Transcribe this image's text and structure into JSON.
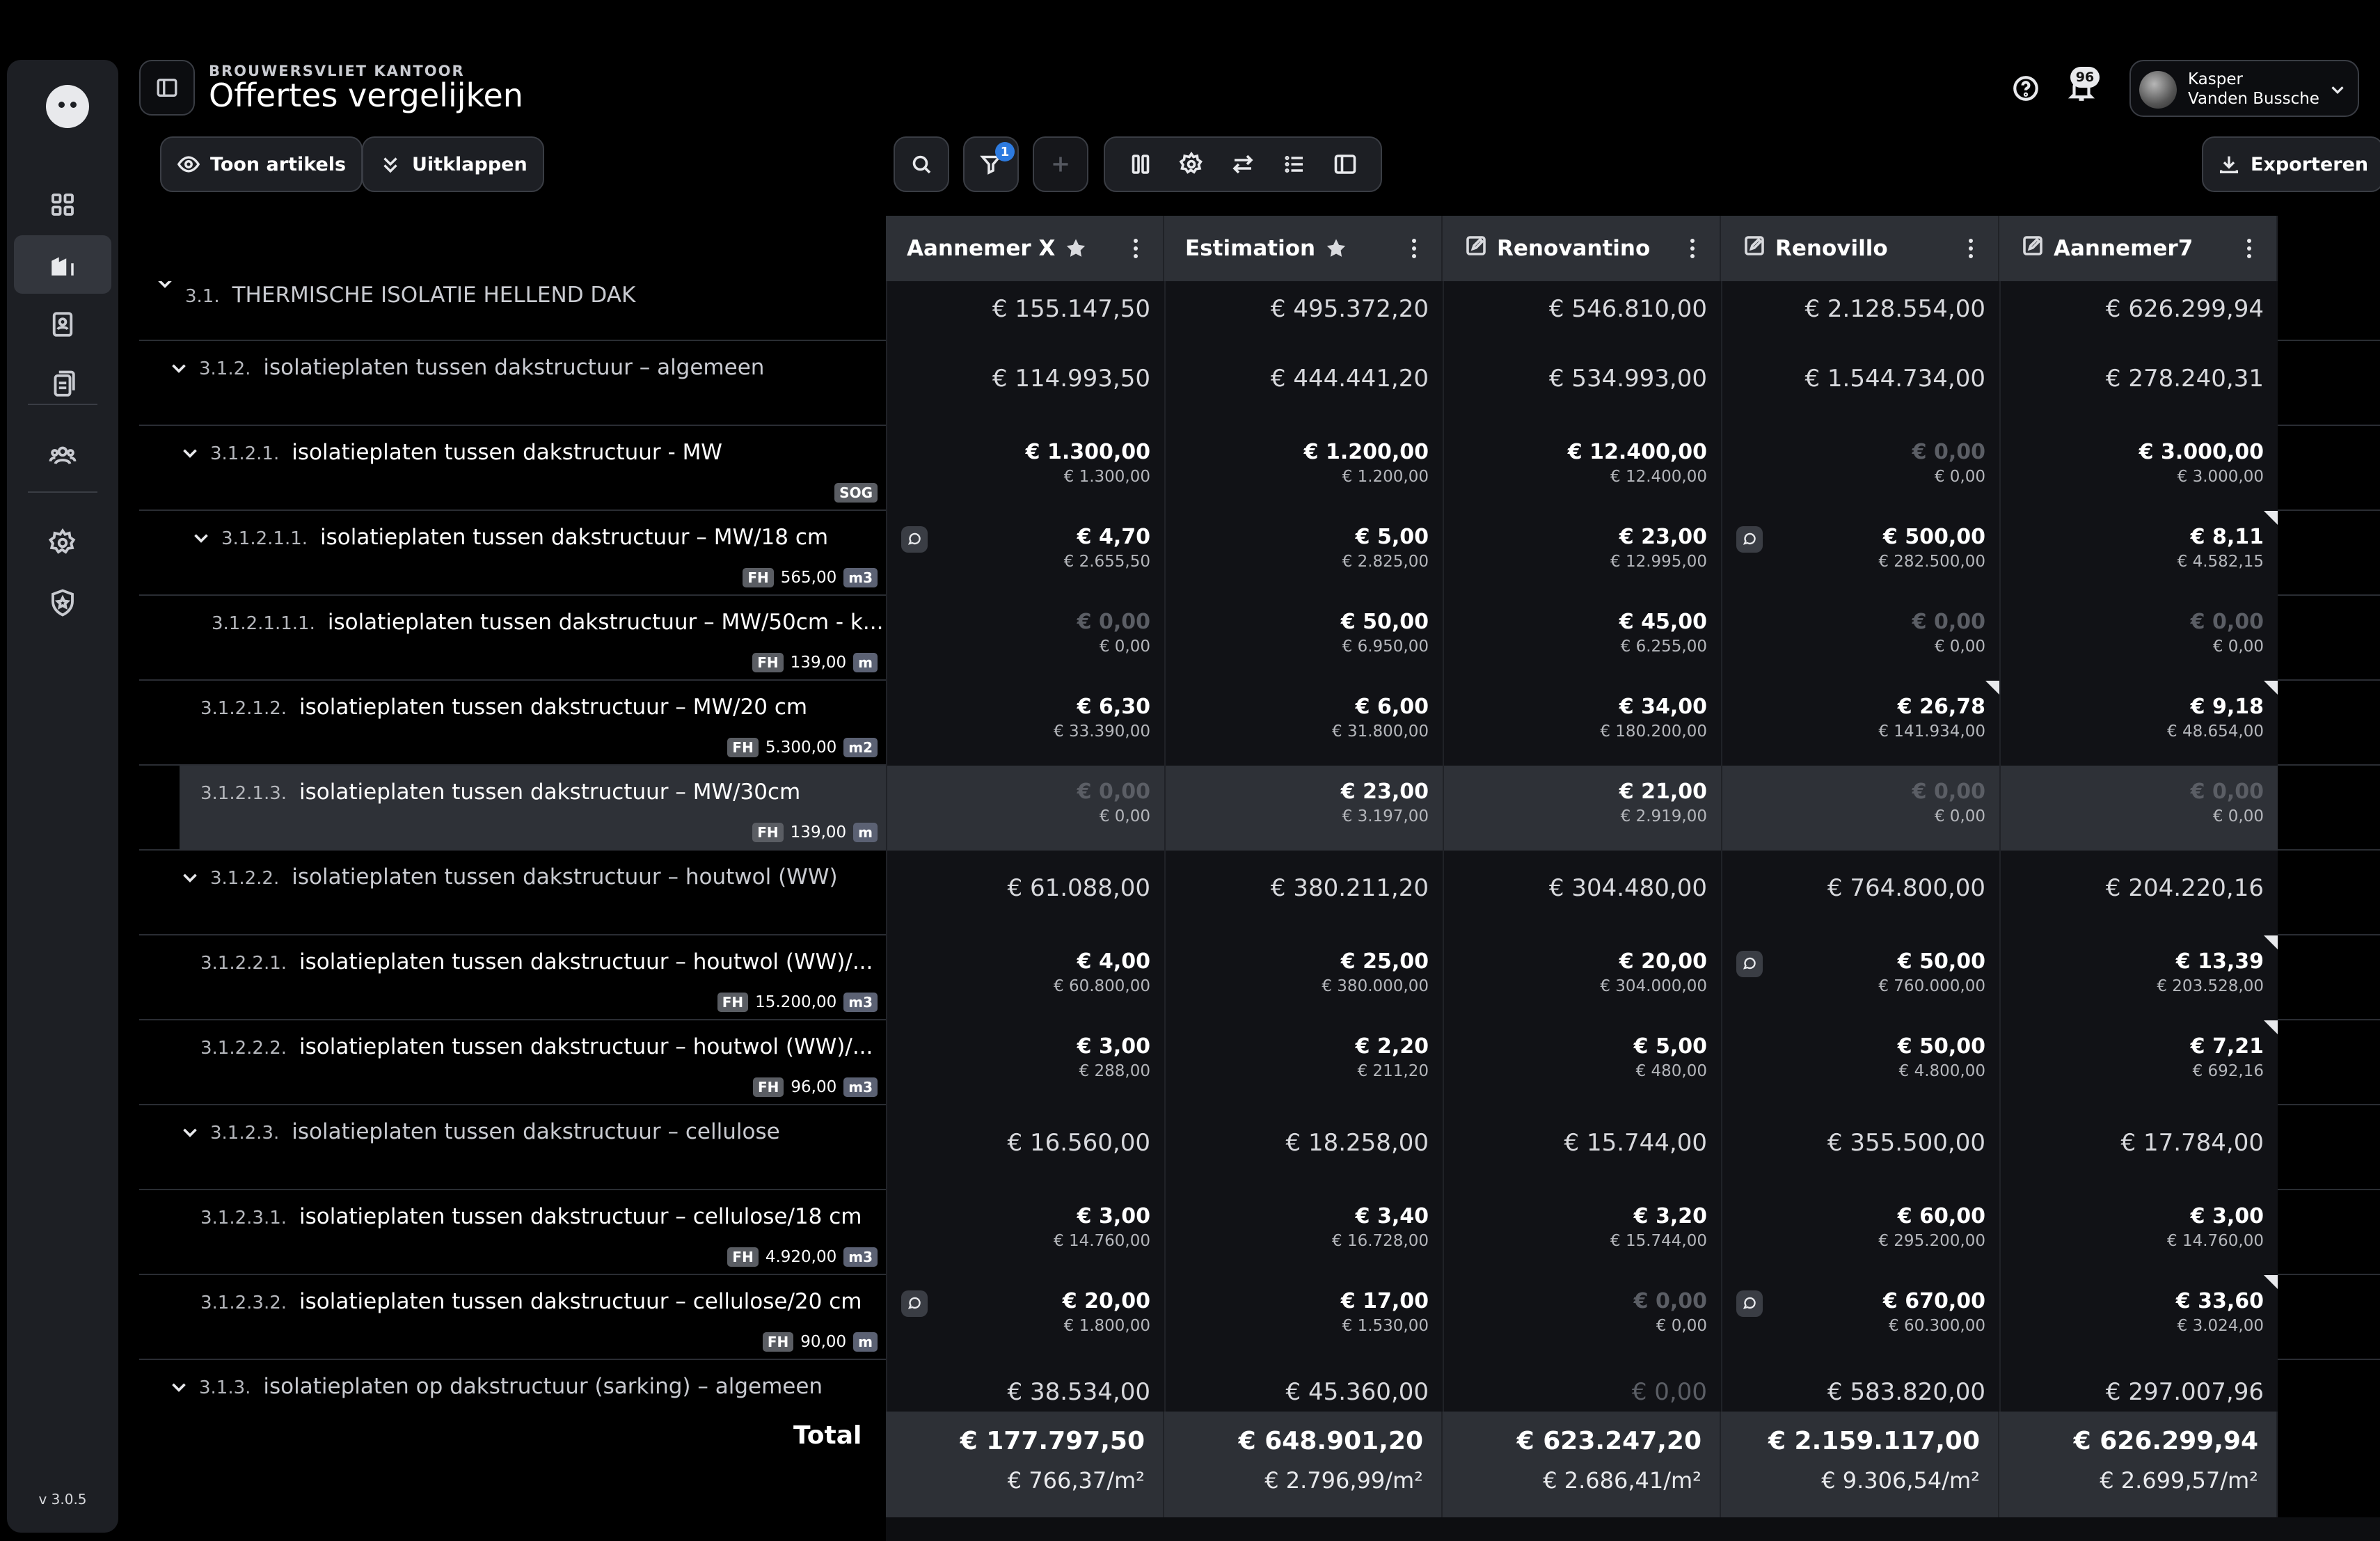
{
  "app": {
    "version": "v 3.0.5",
    "kicker": "BROUWERSVLIET KANTOOR",
    "title": "Offertes vergelijken"
  },
  "header": {
    "notifications": "96",
    "user": {
      "line1": "Kasper",
      "line2": "Vanden Bussche"
    }
  },
  "toolbar": {
    "show_articles": "Toon artikels",
    "expand": "Uitklappen",
    "filter_count": "1",
    "export": "Exporteren"
  },
  "columns": [
    {
      "name": "Aannemer X",
      "icon": "star"
    },
    {
      "name": "Estimation",
      "icon": "star"
    },
    {
      "name": "Renovantino",
      "icon": "edit"
    },
    {
      "name": "Renovillo",
      "icon": "edit"
    },
    {
      "name": "Aannemer7",
      "icon": "edit"
    }
  ],
  "rows": [
    {
      "type": "group",
      "num": "3.1.",
      "label": "THERMISCHE ISOLATIE HELLEND DAK",
      "cells": [
        "€ 155.147,50",
        "€ 495.372,20",
        "€ 546.810,00",
        "€ 2.128.554,00",
        "€ 626.299,94"
      ]
    },
    {
      "type": "group",
      "num": "3.1.2.",
      "label": "isolatieplaten tussen dakstructuur – algemeen",
      "cells": [
        "€ 114.993,50",
        "€ 444.441,20",
        "€ 534.993,00",
        "€ 1.544.734,00",
        "€ 278.240,31"
      ]
    },
    {
      "type": "item",
      "num": "3.1.2.1.",
      "label": "isolatieplaten tussen dakstructuur - MW",
      "tag": "SOG",
      "qty": "",
      "unit": "",
      "cells": [
        [
          "€ 1.300,00",
          "€ 1.300,00"
        ],
        [
          "€ 1.200,00",
          "€ 1.200,00"
        ],
        [
          "€ 12.400,00",
          "€ 12.400,00"
        ],
        [
          "€ 0,00",
          "€ 0,00"
        ],
        [
          "€ 3.000,00",
          "€ 3.000,00"
        ]
      ]
    },
    {
      "type": "item",
      "num": "3.1.2.1.1.",
      "label": "isolatieplaten tussen dakstructuur – MW/18 cm",
      "tag": "FH",
      "qty": "565,00",
      "unit": "m3",
      "cells": [
        [
          "€ 4,70",
          "€ 2.655,50"
        ],
        [
          "€ 5,00",
          "€ 2.825,00"
        ],
        [
          "€ 23,00",
          "€ 12.995,00"
        ],
        [
          "€ 500,00",
          "€ 282.500,00"
        ],
        [
          "€ 8,11",
          "€ 4.582,15"
        ]
      ]
    },
    {
      "type": "item",
      "num": "3.1.2.1.1.1.",
      "label": "isolatieplaten tussen dakstructuur – MW/50cm - k...",
      "tag": "FH",
      "qty": "139,00",
      "unit": "m",
      "cells": [
        [
          "€ 0,00",
          "€ 0,00"
        ],
        [
          "€ 50,00",
          "€ 6.950,00"
        ],
        [
          "€ 45,00",
          "€ 6.255,00"
        ],
        [
          "€ 0,00",
          "€ 0,00"
        ],
        [
          "€ 0,00",
          "€ 0,00"
        ]
      ]
    },
    {
      "type": "item",
      "num": "3.1.2.1.2.",
      "label": "isolatieplaten tussen dakstructuur – MW/20 cm",
      "tag": "FH",
      "qty": "5.300,00",
      "unit": "m2",
      "cells": [
        [
          "€ 6,30",
          "€ 33.390,00"
        ],
        [
          "€ 6,00",
          "€ 31.800,00"
        ],
        [
          "€ 34,00",
          "€ 180.200,00"
        ],
        [
          "€ 26,78",
          "€ 141.934,00"
        ],
        [
          "€ 9,18",
          "€ 48.654,00"
        ]
      ]
    },
    {
      "type": "item",
      "num": "3.1.2.1.3.",
      "label": "isolatieplaten tussen dakstructuur – MW/30cm",
      "tag": "FH",
      "qty": "139,00",
      "unit": "m",
      "cells": [
        [
          "€ 0,00",
          "€ 0,00"
        ],
        [
          "€ 23,00",
          "€ 3.197,00"
        ],
        [
          "€ 21,00",
          "€ 2.919,00"
        ],
        [
          "€ 0,00",
          "€ 0,00"
        ],
        [
          "€ 0,00",
          "€ 0,00"
        ]
      ]
    },
    {
      "type": "group",
      "num": "3.1.2.2.",
      "label": "isolatieplaten tussen dakstructuur – houtwol (WW)",
      "cells": [
        "€ 61.088,00",
        "€ 380.211,20",
        "€ 304.480,00",
        "€ 764.800,00",
        "€ 204.220,16"
      ]
    },
    {
      "type": "item",
      "num": "3.1.2.2.1.",
      "label": "isolatieplaten tussen dakstructuur – houtwol (WW)/...",
      "tag": "FH",
      "qty": "15.200,00",
      "unit": "m3",
      "cells": [
        [
          "€ 4,00",
          "€ 60.800,00"
        ],
        [
          "€ 25,00",
          "€ 380.000,00"
        ],
        [
          "€ 20,00",
          "€ 304.000,00"
        ],
        [
          "€ 50,00",
          "€ 760.000,00"
        ],
        [
          "€ 13,39",
          "€ 203.528,00"
        ]
      ]
    },
    {
      "type": "item",
      "num": "3.1.2.2.2.",
      "label": "isolatieplaten tussen dakstructuur – houtwol (WW)/...",
      "tag": "FH",
      "qty": "96,00",
      "unit": "m3",
      "cells": [
        [
          "€ 3,00",
          "€ 288,00"
        ],
        [
          "€ 2,20",
          "€ 211,20"
        ],
        [
          "€ 5,00",
          "€ 480,00"
        ],
        [
          "€ 50,00",
          "€ 4.800,00"
        ],
        [
          "€ 7,21",
          "€ 692,16"
        ]
      ]
    },
    {
      "type": "group",
      "num": "3.1.2.3.",
      "label": "isolatieplaten tussen dakstructuur – cellulose",
      "cells": [
        "€ 16.560,00",
        "€ 18.258,00",
        "€ 15.744,00",
        "€ 355.500,00",
        "€ 17.784,00"
      ]
    },
    {
      "type": "item",
      "num": "3.1.2.3.1.",
      "label": "isolatieplaten tussen dakstructuur – cellulose/18 cm",
      "tag": "FH",
      "qty": "4.920,00",
      "unit": "m3",
      "cells": [
        [
          "€ 3,00",
          "€ 14.760,00"
        ],
        [
          "€ 3,40",
          "€ 16.728,00"
        ],
        [
          "€ 3,20",
          "€ 15.744,00"
        ],
        [
          "€ 60,00",
          "€ 295.200,00"
        ],
        [
          "€ 3,00",
          "€ 14.760,00"
        ]
      ]
    },
    {
      "type": "item",
      "num": "3.1.2.3.2.",
      "label": "isolatieplaten tussen dakstructuur – cellulose/20 cm",
      "tag": "FH",
      "qty": "90,00",
      "unit": "m",
      "cells": [
        [
          "€ 20,00",
          "€ 1.800,00"
        ],
        [
          "€ 17,00",
          "€ 1.530,00"
        ],
        [
          "€ 0,00",
          "€ 0,00"
        ],
        [
          "€ 670,00",
          "€ 60.300,00"
        ],
        [
          "€ 33,60",
          "€ 3.024,00"
        ]
      ]
    },
    {
      "type": "group",
      "num": "3.1.3.",
      "label": "isolatieplaten op dakstructuur (sarking) – algemeen",
      "cells": [
        "€ 38.534,00",
        "€ 45.360,00",
        "€ 0,00",
        "€ 583.820,00",
        "€ 297.007,96"
      ]
    }
  ],
  "total": {
    "label": "Total",
    "values": [
      [
        "€ 177.797,50",
        "€ 766,37/m²"
      ],
      [
        "€ 648.901,20",
        "€ 2.796,99/m²"
      ],
      [
        "€ 623.247,20",
        "€ 2.686,41/m²"
      ],
      [
        "€ 2.159.117,00",
        "€ 9.306,54/m²"
      ],
      [
        "€ 626.299,94",
        "€ 2.699,57/m²"
      ]
    ]
  }
}
